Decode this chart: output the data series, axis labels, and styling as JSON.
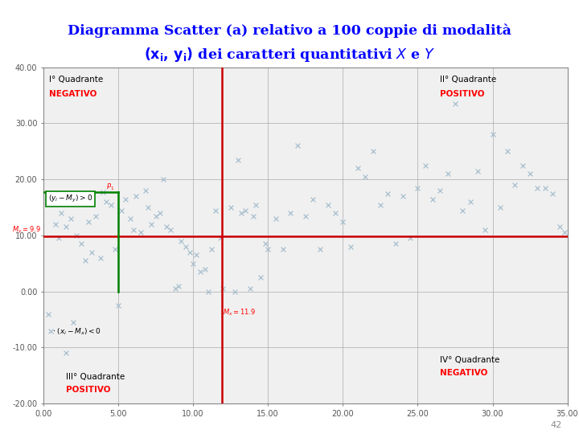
{
  "mx": 11.9,
  "my": 9.9,
  "xlim": [
    0,
    35
  ],
  "ylim": [
    -20,
    40
  ],
  "xticks": [
    0.0,
    5.0,
    10.0,
    15.0,
    20.0,
    25.0,
    30.0,
    35.0
  ],
  "yticks": [
    -20.0,
    -10.0,
    0.0,
    10.0,
    20.0,
    30.0,
    40.0
  ],
  "scatter_color": "#a8bfce",
  "red_line_color": "#cc0000",
  "green_color": "#008000",
  "p1_x": 5.0,
  "p1_y": 17.8,
  "x_data": [
    0.3,
    0.5,
    0.8,
    1.0,
    1.2,
    1.5,
    1.8,
    2.0,
    2.2,
    2.5,
    2.8,
    3.0,
    3.2,
    3.5,
    3.8,
    4.0,
    4.2,
    4.5,
    4.8,
    5.0,
    5.2,
    5.5,
    5.8,
    6.0,
    6.2,
    6.5,
    6.8,
    7.0,
    7.2,
    7.5,
    7.8,
    8.0,
    8.2,
    8.5,
    8.8,
    9.0,
    9.2,
    9.5,
    9.8,
    10.0,
    10.2,
    10.5,
    10.8,
    11.0,
    11.2,
    11.5,
    11.8,
    12.0,
    12.5,
    12.8,
    13.0,
    13.2,
    13.5,
    13.8,
    14.0,
    14.2,
    14.5,
    14.8,
    15.0,
    15.5,
    16.0,
    16.5,
    17.0,
    17.5,
    18.0,
    18.5,
    19.0,
    19.5,
    20.0,
    20.5,
    21.0,
    21.5,
    22.0,
    22.5,
    23.0,
    23.5,
    24.0,
    24.5,
    25.0,
    25.5,
    26.0,
    26.5,
    27.0,
    27.5,
    28.0,
    28.5,
    29.0,
    29.5,
    30.0,
    30.5,
    31.0,
    31.5,
    32.0,
    32.5,
    33.0,
    33.5,
    34.0,
    34.5,
    34.8,
    1.5
  ],
  "y_data": [
    -4.0,
    -7.0,
    12.0,
    9.5,
    14.0,
    11.5,
    13.0,
    -5.5,
    10.0,
    8.5,
    5.5,
    12.5,
    7.0,
    13.5,
    6.0,
    17.8,
    16.0,
    15.5,
    7.5,
    -2.5,
    14.5,
    16.5,
    13.0,
    11.0,
    17.0,
    10.5,
    18.0,
    15.0,
    12.0,
    13.5,
    14.0,
    20.0,
    11.5,
    11.0,
    0.5,
    1.0,
    9.0,
    8.0,
    7.0,
    5.0,
    6.5,
    3.5,
    4.0,
    0.0,
    7.5,
    14.5,
    9.5,
    0.5,
    15.0,
    0.0,
    23.5,
    14.0,
    14.5,
    0.5,
    13.5,
    15.5,
    2.5,
    8.5,
    7.5,
    13.0,
    7.5,
    14.0,
    26.0,
    13.5,
    16.5,
    7.5,
    15.5,
    14.0,
    12.5,
    8.0,
    22.0,
    20.5,
    25.0,
    15.5,
    17.5,
    8.5,
    17.0,
    9.5,
    18.5,
    22.5,
    16.5,
    18.0,
    21.0,
    33.5,
    14.5,
    16.0,
    21.5,
    11.0,
    28.0,
    15.0,
    25.0,
    19.0,
    22.5,
    21.0,
    18.5,
    18.5,
    17.5,
    11.5,
    10.5,
    -11.0
  ],
  "page_number": "42",
  "bg_color": "#f0f0f0"
}
